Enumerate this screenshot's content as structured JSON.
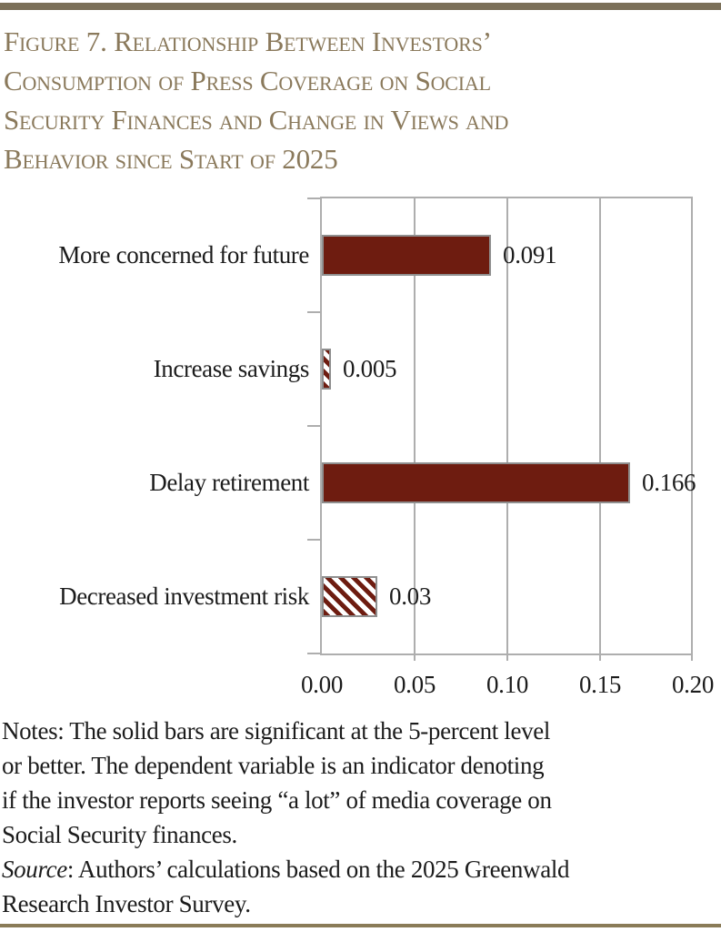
{
  "figure": {
    "title_lines": [
      "Figure 7. Relationship Between Investors’",
      "Consumption of Press Coverage on Social",
      "Security Finances and Change in Views and",
      "Behavior since Start of 2025"
    ],
    "title_color": "#8a795b",
    "accent_bar_color": "#7b7059",
    "bottom_rule_color": "#8a7b58"
  },
  "chart_data": {
    "type": "bar",
    "orientation": "horizontal",
    "categories": [
      "More concerned for future",
      "Increase savings",
      "Delay retirement",
      "Decreased investment risk"
    ],
    "values": [
      0.091,
      0.005,
      0.166,
      0.03
    ],
    "value_labels": [
      "0.091",
      "0.005",
      "0.166",
      "0.03"
    ],
    "bar_styles": [
      "solid",
      "hatched",
      "solid",
      "hatched"
    ],
    "bar_color": "#6e1c10",
    "bar_border_color": "#8f8f8f",
    "grid_color": "#aeaeae",
    "x_ticks": [
      "0.00",
      "0.05",
      "0.10",
      "0.15",
      "0.20"
    ],
    "xlim": [
      0,
      0.2
    ],
    "grid": "vertical gridlines",
    "legend_position": "none",
    "hatch_note": "hatched bars = not significant; solid bars = significant at 5-percent level"
  },
  "notes": {
    "lines": [
      "Notes: The solid bars are significant at the 5-percent level",
      "or better. The dependent variable is an indicator denoting",
      "if the investor reports seeing “a lot” of media coverage on",
      "Social Security finances."
    ],
    "source_label": "Source",
    "source_rest": ": Authors’ calculations based on the 2025 Greenwald",
    "source_line2": "Research Investor Survey."
  }
}
